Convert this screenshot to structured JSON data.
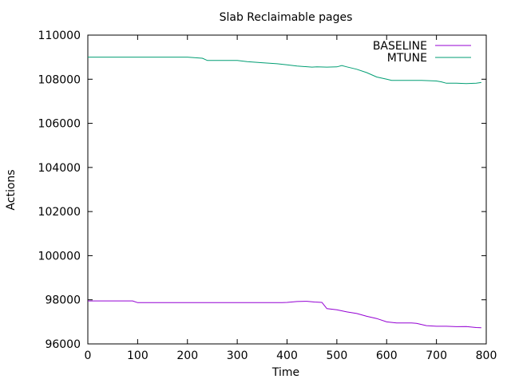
{
  "chart_data": {
    "type": "line",
    "title": "Slab Reclaimable pages",
    "xlabel": "Time",
    "ylabel": "Actions",
    "xlim": [
      0,
      800
    ],
    "ylim": [
      96000,
      110000
    ],
    "xticks": [
      0,
      100,
      200,
      300,
      400,
      500,
      600,
      700,
      800
    ],
    "yticks": [
      96000,
      98000,
      100000,
      102000,
      104000,
      106000,
      108000,
      110000
    ],
    "xtick_labels": [
      "0",
      "100",
      "200",
      "300",
      "400",
      "500",
      "600",
      "700",
      "800"
    ],
    "ytick_labels": [
      "96000",
      "98000",
      "100000",
      "102000",
      "104000",
      "106000",
      "108000",
      "110000"
    ],
    "grid": false,
    "legend": "top-right",
    "series": [
      {
        "name": "BASELINE",
        "color": "#9400d3",
        "x": [
          0,
          90,
          100,
          200,
          300,
          390,
          400,
          420,
          440,
          455,
          470,
          480,
          500,
          520,
          540,
          560,
          580,
          600,
          620,
          650,
          660,
          680,
          700,
          720,
          740,
          760,
          780,
          790
        ],
        "y": [
          97950,
          97950,
          97870,
          97870,
          97870,
          97870,
          97880,
          97920,
          97930,
          97900,
          97880,
          97600,
          97550,
          97450,
          97380,
          97250,
          97150,
          97000,
          96950,
          96950,
          96930,
          96830,
          96800,
          96800,
          96780,
          96790,
          96740,
          96730
        ]
      },
      {
        "name": "MTUNE",
        "color": "#009e73",
        "x": [
          0,
          100,
          200,
          230,
          240,
          300,
          320,
          350,
          380,
          400,
          420,
          450,
          460,
          480,
          500,
          510,
          520,
          540,
          560,
          580,
          600,
          610,
          620,
          650,
          670,
          700,
          710,
          720,
          740,
          760,
          780,
          790
        ],
        "y": [
          109000,
          109000,
          109000,
          108950,
          108850,
          108850,
          108800,
          108750,
          108700,
          108650,
          108600,
          108550,
          108560,
          108550,
          108560,
          108620,
          108560,
          108450,
          108300,
          108100,
          108000,
          107950,
          107950,
          107950,
          107950,
          107920,
          107880,
          107820,
          107820,
          107800,
          107820,
          107850
        ]
      }
    ]
  }
}
